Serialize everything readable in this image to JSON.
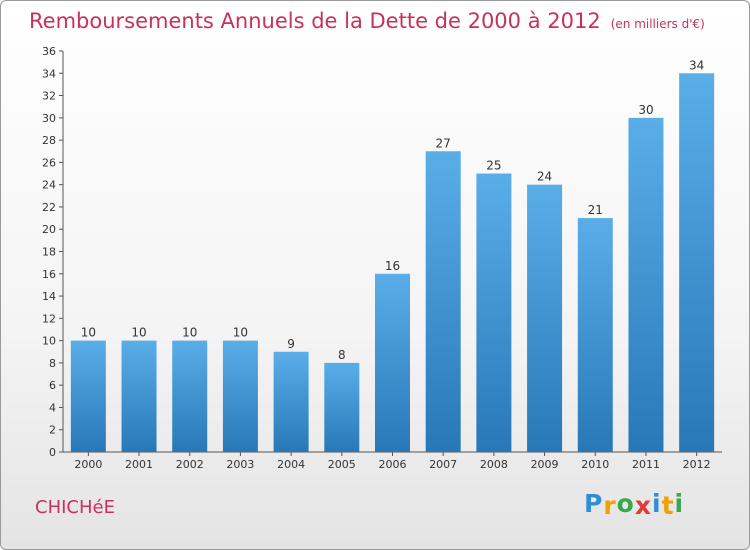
{
  "title": "Remboursements Annuels de la Dette de 2000 à 2012",
  "subtitle": "(en milliers d'€)",
  "commune": "CHICHéE",
  "logo": {
    "letters": [
      "P",
      "r",
      "o",
      "x",
      "i",
      "t",
      "i"
    ],
    "colors": [
      "#2f8fd6",
      "#f0a000",
      "#3aa84a",
      "#e23a3a",
      "#2f8fd6",
      "#f0a000",
      "#3aa84a"
    ]
  },
  "colors": {
    "bar_top": "#5aaee8",
    "bar_bottom": "#2878b8",
    "title": "#c8325a"
  },
  "chart_data": {
    "type": "bar",
    "categories": [
      "2000",
      "2001",
      "2002",
      "2003",
      "2004",
      "2005",
      "2006",
      "2007",
      "2008",
      "2009",
      "2010",
      "2011",
      "2012"
    ],
    "values": [
      10,
      10,
      10,
      10,
      9,
      8,
      16,
      27,
      25,
      24,
      21,
      30,
      34
    ],
    "title": "Remboursements Annuels de la Dette de 2000 à 2012",
    "xlabel": "",
    "ylabel": "",
    "ylim": [
      0,
      36
    ],
    "yticks": [
      0,
      2,
      4,
      6,
      8,
      10,
      12,
      14,
      16,
      18,
      20,
      22,
      24,
      26,
      28,
      30,
      32,
      34,
      36
    ],
    "grid": false,
    "legend": "none"
  }
}
